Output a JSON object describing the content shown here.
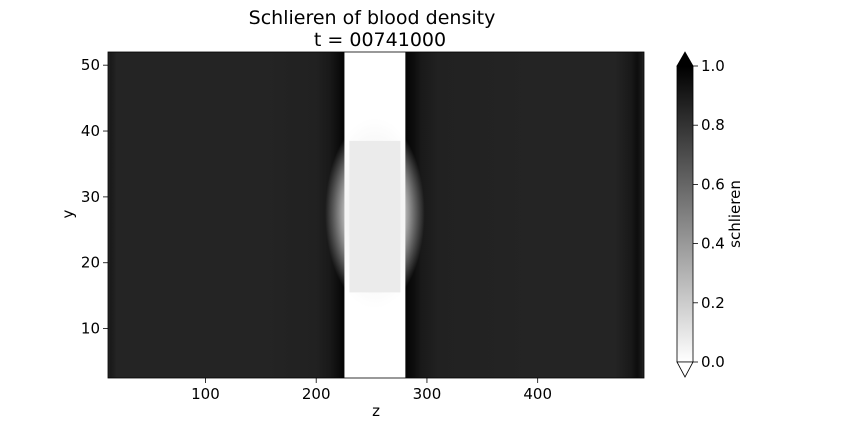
{
  "chart_data": {
    "type": "heatmap",
    "title_line1": "Schlieren of blood density",
    "title_line2": "t = 00741000",
    "xlabel": "z",
    "ylabel": "y",
    "xlim": [
      12,
      496
    ],
    "ylim": [
      2.5,
      52
    ],
    "xticks": [
      100,
      200,
      300,
      400
    ],
    "xtick_labels": [
      "100",
      "200",
      "300",
      "400"
    ],
    "yticks": [
      10,
      20,
      30,
      40,
      50
    ],
    "ytick_labels": [
      "10",
      "20",
      "30",
      "40",
      "50"
    ],
    "colormap": "gray_r",
    "colorbar": {
      "label": "schlieren",
      "range": [
        0.0,
        1.0
      ],
      "extend": "both",
      "ticks": [
        0.0,
        0.2,
        0.4,
        0.6,
        0.8,
        1.0
      ],
      "tick_labels": [
        "0.0",
        "0.2",
        "0.4",
        "0.6",
        "0.8",
        "1.0"
      ]
    },
    "z_profile": [
      {
        "z": 12,
        "v": 0.82
      },
      {
        "z": 14,
        "v": 0.9
      },
      {
        "z": 20,
        "v": 0.86
      },
      {
        "z": 60,
        "v": 0.86
      },
      {
        "z": 150,
        "v": 0.86
      },
      {
        "z": 200,
        "v": 0.87
      },
      {
        "z": 212,
        "v": 0.9
      },
      {
        "z": 220,
        "v": 0.95
      },
      {
        "z": 225,
        "v": 0.98
      },
      {
        "z": 226,
        "v": 0.0
      },
      {
        "z": 280,
        "v": 0.0
      },
      {
        "z": 281,
        "v": 0.98
      },
      {
        "z": 288,
        "v": 0.95
      },
      {
        "z": 295,
        "v": 0.9
      },
      {
        "z": 310,
        "v": 0.87
      },
      {
        "z": 400,
        "v": 0.86
      },
      {
        "z": 470,
        "v": 0.86
      },
      {
        "z": 484,
        "v": 0.9
      },
      {
        "z": 490,
        "v": 0.95
      },
      {
        "z": 494,
        "v": 0.9
      },
      {
        "z": 496,
        "v": 0.84
      }
    ],
    "glow_region": {
      "z": [
        208,
        298
      ],
      "y": [
        13,
        42
      ],
      "peak_value": 0.05
    },
    "inner_block": {
      "z": [
        230,
        276
      ],
      "y": [
        15.5,
        38.5
      ],
      "value": 0.08
    }
  }
}
